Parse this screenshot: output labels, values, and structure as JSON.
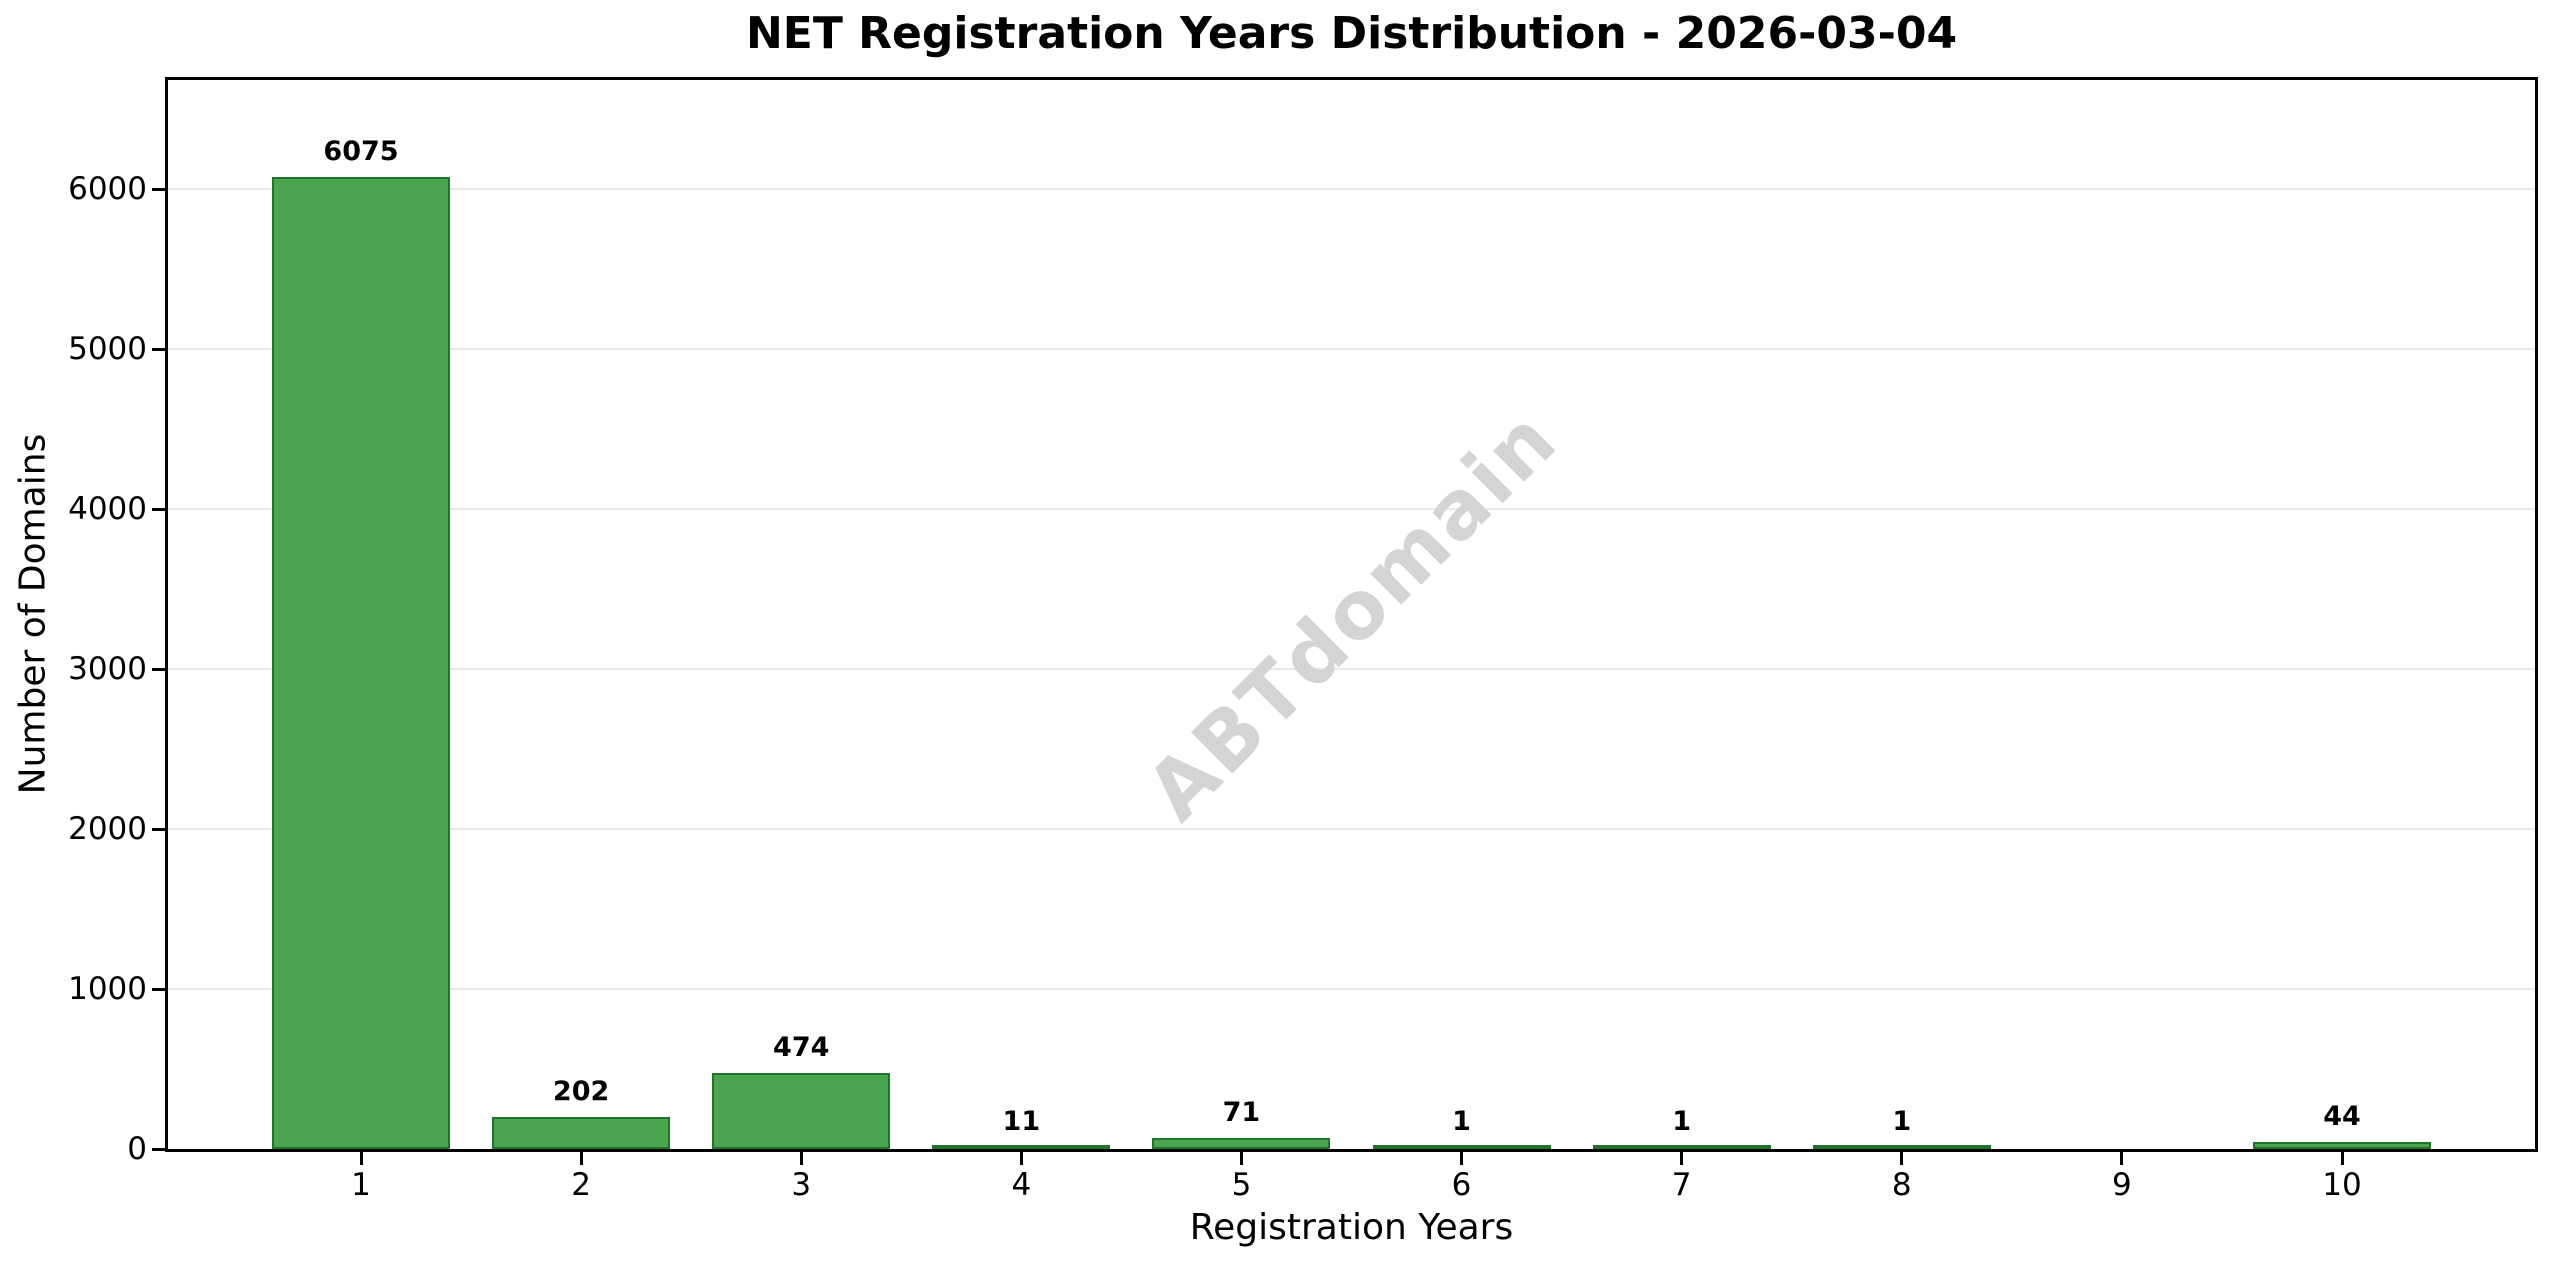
{
  "chart_data": {
    "type": "bar",
    "title": "NET Registration Years Distribution - 2026-03-04",
    "xlabel": "Registration Years",
    "ylabel": "Number of Domains",
    "categories": [
      "1",
      "2",
      "3",
      "4",
      "5",
      "6",
      "7",
      "8",
      "9",
      "10"
    ],
    "values": [
      6075,
      202,
      474,
      11,
      71,
      1,
      1,
      1,
      0,
      44
    ],
    "bar_labels": [
      "6075",
      "202",
      "474",
      "11",
      "71",
      "1",
      "1",
      "1",
      "",
      "44"
    ],
    "yticks": [
      0,
      1000,
      2000,
      3000,
      4000,
      5000,
      6000
    ],
    "ytick_labels": [
      "0",
      "1000",
      "2000",
      "3000",
      "4000",
      "5000",
      "6000"
    ],
    "ylim": [
      0,
      6683
    ],
    "grid": "horizontal",
    "legend_position": "none",
    "colors": {
      "bar_fill": "#4AA54E",
      "bar_edge": "#1E742A",
      "grid": "#e8e8e8",
      "axis": "#000000",
      "watermark": "#d4d4d4"
    },
    "watermark": "ABTdomain"
  }
}
